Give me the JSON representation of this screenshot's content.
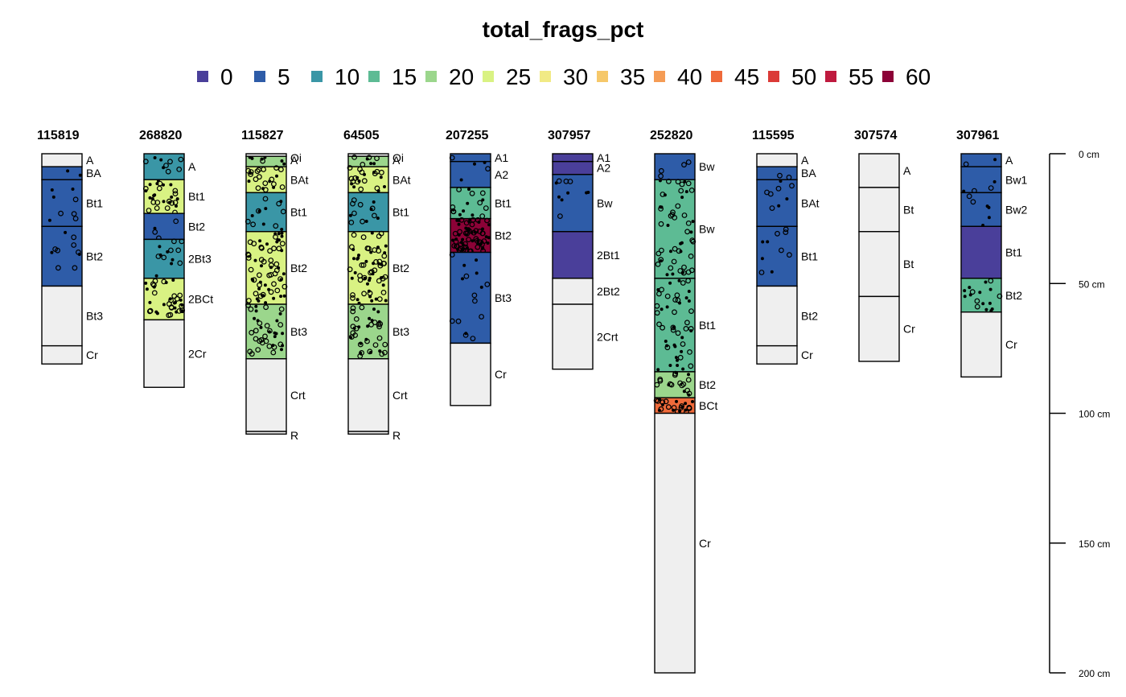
{
  "chart_data": {
    "type": "soil-profile-sketch",
    "title": "total_frags_pct",
    "legend": {
      "entries": [
        {
          "label": "0",
          "color": "#4a3f9a"
        },
        {
          "label": "5",
          "color": "#2e5ca8"
        },
        {
          "label": "10",
          "color": "#3a96a6"
        },
        {
          "label": "15",
          "color": "#5dbb94"
        },
        {
          "label": "20",
          "color": "#9bd68c"
        },
        {
          "label": "25",
          "color": "#d9f283"
        },
        {
          "label": "30",
          "color": "#f1ea85"
        },
        {
          "label": "35",
          "color": "#f6c86a"
        },
        {
          "label": "40",
          "color": "#f59c55"
        },
        {
          "label": "45",
          "color": "#ef6a3a"
        },
        {
          "label": "50",
          "color": "#db3a37"
        },
        {
          "label": "55",
          "color": "#bf1a3e"
        },
        {
          "label": "60",
          "color": "#8c0237"
        }
      ]
    },
    "depth_axis": {
      "unit": "cm",
      "range": [
        0,
        200
      ],
      "ticks": [
        {
          "value": 0,
          "label": "0 cm"
        },
        {
          "value": 50,
          "label": "50 cm"
        },
        {
          "value": 100,
          "label": "100 cm"
        },
        {
          "value": 150,
          "label": "150 cm"
        },
        {
          "value": 200,
          "label": "200 cm"
        }
      ]
    },
    "no_data_color": "#efefef",
    "profiles": [
      {
        "id": "115819",
        "horizons": [
          {
            "name": "A",
            "top": 0,
            "bottom": 5,
            "frags": null
          },
          {
            "name": "BA",
            "top": 5,
            "bottom": 10,
            "frags": 5
          },
          {
            "name": "Bt1",
            "top": 10,
            "bottom": 28,
            "frags": 5
          },
          {
            "name": "Bt2",
            "top": 28,
            "bottom": 51,
            "frags": 5
          },
          {
            "name": "Bt3",
            "top": 51,
            "bottom": 74,
            "frags": null
          },
          {
            "name": "Cr",
            "top": 74,
            "bottom": 81,
            "frags": null
          }
        ]
      },
      {
        "id": "268820",
        "horizons": [
          {
            "name": "A",
            "top": 0,
            "bottom": 10,
            "frags": 10
          },
          {
            "name": "Bt1",
            "top": 10,
            "bottom": 23,
            "frags": 25
          },
          {
            "name": "Bt2",
            "top": 23,
            "bottom": 33,
            "frags": 5
          },
          {
            "name": "2Bt3",
            "top": 33,
            "bottom": 48,
            "frags": 10
          },
          {
            "name": "2BCt",
            "top": 48,
            "bottom": 64,
            "frags": 25
          },
          {
            "name": "2Cr",
            "top": 64,
            "bottom": 90,
            "frags": null
          }
        ]
      },
      {
        "id": "115827",
        "horizons": [
          {
            "name": "Oi",
            "top": 0,
            "bottom": 1,
            "frags": null
          },
          {
            "name": "A",
            "top": 1,
            "bottom": 5,
            "frags": 20
          },
          {
            "name": "BAt",
            "top": 5,
            "bottom": 15,
            "frags": 25
          },
          {
            "name": "Bt1",
            "top": 15,
            "bottom": 30,
            "frags": 10
          },
          {
            "name": "Bt2",
            "top": 30,
            "bottom": 58,
            "frags": 25
          },
          {
            "name": "Bt3",
            "top": 58,
            "bottom": 79,
            "frags": 20
          },
          {
            "name": "Crt",
            "top": 79,
            "bottom": 107,
            "frags": null
          },
          {
            "name": "R",
            "top": 107,
            "bottom": 108,
            "frags": null
          }
        ]
      },
      {
        "id": "64505",
        "horizons": [
          {
            "name": "Oi",
            "top": 0,
            "bottom": 1,
            "frags": null
          },
          {
            "name": "A",
            "top": 1,
            "bottom": 5,
            "frags": 20
          },
          {
            "name": "BAt",
            "top": 5,
            "bottom": 15,
            "frags": 25
          },
          {
            "name": "Bt1",
            "top": 15,
            "bottom": 30,
            "frags": 10
          },
          {
            "name": "Bt2",
            "top": 30,
            "bottom": 58,
            "frags": 25
          },
          {
            "name": "Bt3",
            "top": 58,
            "bottom": 79,
            "frags": 20
          },
          {
            "name": "Crt",
            "top": 79,
            "bottom": 107,
            "frags": null
          },
          {
            "name": "R",
            "top": 107,
            "bottom": 108,
            "frags": null
          }
        ]
      },
      {
        "id": "207255",
        "horizons": [
          {
            "name": "A1",
            "top": 0,
            "bottom": 3,
            "frags": 5
          },
          {
            "name": "A2",
            "top": 3,
            "bottom": 13,
            "frags": 5
          },
          {
            "name": "Bt1",
            "top": 13,
            "bottom": 25,
            "frags": 15
          },
          {
            "name": "Bt2",
            "top": 25,
            "bottom": 38,
            "frags": 60
          },
          {
            "name": "Bt3",
            "top": 38,
            "bottom": 73,
            "frags": 5
          },
          {
            "name": "Cr",
            "top": 73,
            "bottom": 97,
            "frags": null
          }
        ]
      },
      {
        "id": "307957",
        "horizons": [
          {
            "name": "A1",
            "top": 0,
            "bottom": 3,
            "frags": 0
          },
          {
            "name": "A2",
            "top": 3,
            "bottom": 8,
            "frags": 0
          },
          {
            "name": "Bw",
            "top": 8,
            "bottom": 30,
            "frags": 5
          },
          {
            "name": "2Bt1",
            "top": 30,
            "bottom": 48,
            "frags": 0
          },
          {
            "name": "2Bt2",
            "top": 48,
            "bottom": 58,
            "frags": null
          },
          {
            "name": "2Crt",
            "top": 58,
            "bottom": 83,
            "frags": null
          }
        ]
      },
      {
        "id": "252820",
        "horizons": [
          {
            "name": "Bw",
            "top": 0,
            "bottom": 10,
            "frags": 5
          },
          {
            "name": "Bw",
            "top": 10,
            "bottom": 48,
            "frags": 15
          },
          {
            "name": "Bt1",
            "top": 48,
            "bottom": 84,
            "frags": 15
          },
          {
            "name": "Bt2",
            "top": 84,
            "bottom": 94,
            "frags": 20
          },
          {
            "name": "BCt",
            "top": 94,
            "bottom": 100,
            "frags": 45
          },
          {
            "name": "Cr",
            "top": 100,
            "bottom": 200,
            "frags": null
          }
        ]
      },
      {
        "id": "115595",
        "horizons": [
          {
            "name": "A",
            "top": 0,
            "bottom": 5,
            "frags": null
          },
          {
            "name": "BA",
            "top": 5,
            "bottom": 10,
            "frags": 5
          },
          {
            "name": "BAt",
            "top": 10,
            "bottom": 28,
            "frags": 5
          },
          {
            "name": "Bt1",
            "top": 28,
            "bottom": 51,
            "frags": 5
          },
          {
            "name": "Bt2",
            "top": 51,
            "bottom": 74,
            "frags": null
          },
          {
            "name": "Cr",
            "top": 74,
            "bottom": 81,
            "frags": null
          }
        ]
      },
      {
        "id": "307574",
        "horizons": [
          {
            "name": "A",
            "top": 0,
            "bottom": 13,
            "frags": null
          },
          {
            "name": "Bt",
            "top": 13,
            "bottom": 30,
            "frags": null
          },
          {
            "name": "Bt",
            "top": 30,
            "bottom": 55,
            "frags": null
          },
          {
            "name": "Cr",
            "top": 55,
            "bottom": 80,
            "frags": null
          }
        ]
      },
      {
        "id": "307961",
        "horizons": [
          {
            "name": "A",
            "top": 0,
            "bottom": 5,
            "frags": 5
          },
          {
            "name": "Bw1",
            "top": 5,
            "bottom": 15,
            "frags": 5
          },
          {
            "name": "Bw2",
            "top": 15,
            "bottom": 28,
            "frags": 5
          },
          {
            "name": "Bt1",
            "top": 28,
            "bottom": 48,
            "frags": 0
          },
          {
            "name": "Bt2",
            "top": 48,
            "bottom": 61,
            "frags": 15
          },
          {
            "name": "Cr",
            "top": 61,
            "bottom": 86,
            "frags": null
          }
        ]
      }
    ]
  }
}
